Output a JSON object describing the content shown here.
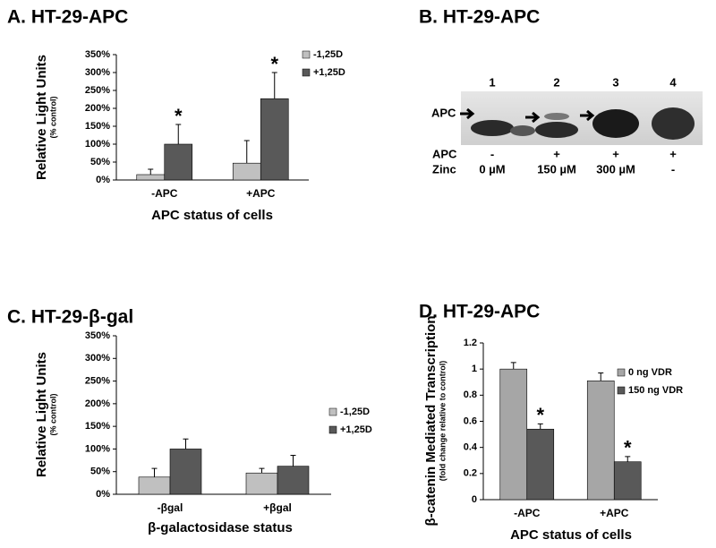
{
  "chart_data": [
    {
      "type": "bar",
      "title": "A. HT-29-APC",
      "ylabel": "Relative Light Units",
      "ylabel_note": "(% control)",
      "xlabel": "APC status of cells",
      "categories": [
        "-APC",
        "+APC"
      ],
      "series": [
        {
          "name": "-1,25D",
          "color": "#c0c0c0",
          "values": [
            15,
            47
          ],
          "errors": [
            15,
            63
          ],
          "significance": [
            null,
            null
          ]
        },
        {
          "name": "+1,25D",
          "color": "#595959",
          "values": [
            100,
            227
          ],
          "errors": [
            55,
            73
          ],
          "significance": [
            "*",
            "*"
          ]
        }
      ],
      "ylim": [
        0,
        350
      ],
      "yticks": [
        {
          "value": 0,
          "label": "0%"
        },
        {
          "value": 50,
          "label": "50%"
        },
        {
          "value": 100,
          "label": "100%"
        },
        {
          "value": 150,
          "label": "150%"
        },
        {
          "value": 200,
          "label": "200%"
        },
        {
          "value": 250,
          "label": "250%"
        },
        {
          "value": 300,
          "label": "300%"
        },
        {
          "value": 350,
          "label": "350%"
        }
      ],
      "grid": false,
      "legend": "upper right"
    },
    {
      "type": "bar",
      "title": "C. HT-29-β-gal",
      "ylabel": "Relative Light Units",
      "ylabel_note": "(% control)",
      "xlabel": "β-galactosidase status",
      "categories": [
        "-βgal",
        "+βgal"
      ],
      "series": [
        {
          "name": "-1,25D",
          "color": "#c0c0c0",
          "values": [
            38,
            47
          ],
          "errors": [
            19,
            10
          ],
          "significance": [
            null,
            null
          ]
        },
        {
          "name": "+1,25D",
          "color": "#595959",
          "values": [
            100,
            62
          ],
          "errors": [
            22,
            24
          ],
          "significance": [
            null,
            null
          ]
        }
      ],
      "ylim": [
        0,
        350
      ],
      "yticks": [
        {
          "value": 0,
          "label": "0%"
        },
        {
          "value": 50,
          "label": "50%"
        },
        {
          "value": 100,
          "label": "100%"
        },
        {
          "value": 150,
          "label": "150%"
        },
        {
          "value": 200,
          "label": "200%"
        },
        {
          "value": 250,
          "label": "250%"
        },
        {
          "value": 300,
          "label": "300%"
        },
        {
          "value": 350,
          "label": "350%"
        }
      ],
      "grid": false,
      "legend": "center right"
    },
    {
      "type": "bar",
      "title": "D. HT-29-APC",
      "ylabel": "β-catenin Mediated Transcription",
      "ylabel_note": "(fold change relative to control)",
      "xlabel": "APC status of cells",
      "categories": [
        "-APC",
        "+APC"
      ],
      "series": [
        {
          "name": "0 ng VDR",
          "color": "#a6a6a6",
          "values": [
            1.0,
            0.91
          ],
          "errors": [
            0.05,
            0.06
          ],
          "significance": [
            null,
            null
          ]
        },
        {
          "name": "150 ng VDR",
          "color": "#595959",
          "values": [
            0.54,
            0.29
          ],
          "errors": [
            0.04,
            0.04
          ],
          "significance": [
            "*",
            "*"
          ]
        }
      ],
      "ylim": [
        0,
        1.2
      ],
      "yticks": [
        0,
        0.2,
        0.4,
        0.6,
        0.8,
        1,
        1.2
      ],
      "grid": false,
      "legend": "upper right"
    }
  ],
  "blot": {
    "title": "B. HT-29-APC",
    "lanes": [
      "1",
      "2",
      "3",
      "4"
    ],
    "band_label": "APC",
    "rows": [
      {
        "label": "APC",
        "cells": [
          "-",
          "+",
          "+",
          "+"
        ]
      },
      {
        "label": "Zinc",
        "cells": [
          "0 µM",
          "150 µM",
          "300 µM",
          "-"
        ]
      }
    ]
  }
}
